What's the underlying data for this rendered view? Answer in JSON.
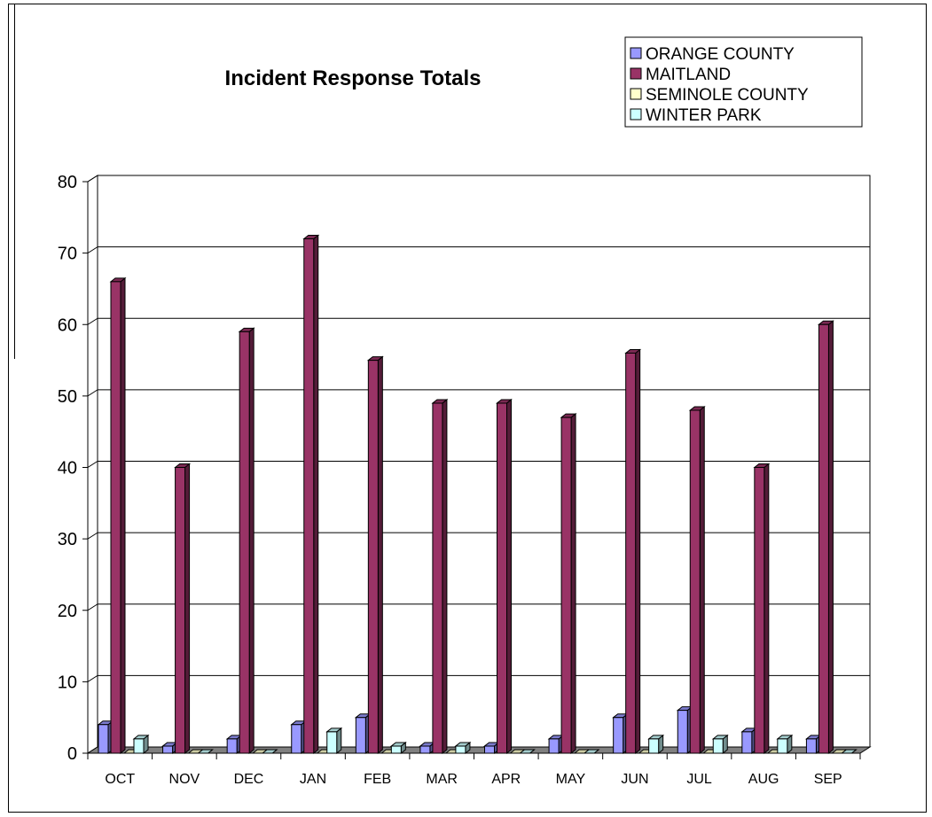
{
  "chart_data": {
    "type": "bar",
    "title": "Incident Response Totals",
    "xlabel": "",
    "ylabel": "",
    "ylim": [
      0,
      80
    ],
    "yticks": [
      0,
      10,
      20,
      30,
      40,
      50,
      60,
      70,
      80
    ],
    "grid": true,
    "legend_position": "top-right",
    "categories": [
      "OCT",
      "NOV",
      "DEC",
      "JAN",
      "FEB",
      "MAR",
      "APR",
      "MAY",
      "JUN",
      "JUL",
      "AUG",
      "SEP"
    ],
    "series": [
      {
        "name": "ORANGE COUNTY",
        "color": "#9999ff",
        "values": [
          4,
          1,
          2,
          4,
          5,
          1,
          1,
          2,
          5,
          6,
          3,
          2
        ]
      },
      {
        "name": "MAITLAND",
        "color": "#993366",
        "values": [
          66,
          40,
          59,
          72,
          55,
          49,
          49,
          47,
          56,
          48,
          40,
          60
        ]
      },
      {
        "name": "SEMINOLE COUNTY",
        "color": "#ffffcc",
        "values": [
          0,
          0,
          0,
          0,
          0,
          0,
          0,
          0,
          0,
          0,
          0,
          0
        ]
      },
      {
        "name": "WINTER PARK",
        "color": "#ccffff",
        "values": [
          2,
          0,
          0,
          3,
          1,
          1,
          0,
          0,
          2,
          2,
          2,
          0
        ]
      }
    ]
  }
}
